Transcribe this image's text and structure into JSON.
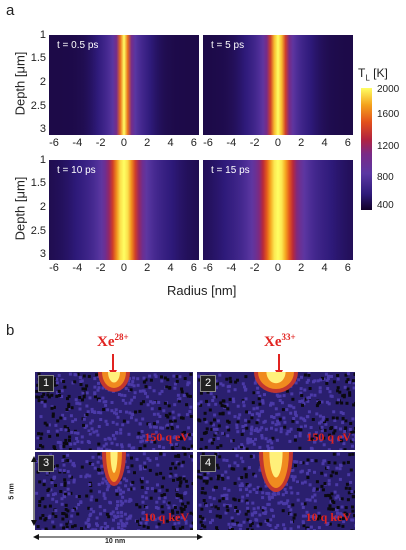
{
  "panel_a": {
    "letter": "a",
    "y_axis_label": "Depth [μm]",
    "x_axis_label": "Radius [nm]",
    "y_ticks": [
      "1",
      "1.5",
      "2",
      "2.5",
      "3"
    ],
    "x_ticks": [
      "-6",
      "-4",
      "-2",
      "0",
      "2",
      "4",
      "6"
    ],
    "colorbar": {
      "label": "T",
      "label_sub": "L",
      "label_unit": "[K]",
      "ticks": [
        "2000",
        "1600",
        "1200",
        "800",
        "400"
      ]
    },
    "subplots": [
      {
        "time_label": "t = 0.5 ps",
        "core_width_nm": 1.0,
        "halo_width_nm": 4.5
      },
      {
        "time_label": "t = 5 ps",
        "core_width_nm": 1.6,
        "halo_width_nm": 5.5
      },
      {
        "time_label": "t = 10 ps",
        "core_width_nm": 2.4,
        "halo_width_nm": 8.0
      },
      {
        "time_label": "t = 15 ps",
        "core_width_nm": 2.8,
        "halo_width_nm": 9.0
      }
    ]
  },
  "panel_b": {
    "letter": "b",
    "ions": [
      {
        "symbol": "Xe",
        "charge": "28+"
      },
      {
        "symbol": "Xe",
        "charge": "33+"
      }
    ],
    "tiles": [
      {
        "number": "1",
        "energy": "150 q eV"
      },
      {
        "number": "2",
        "energy": "150 q eV"
      },
      {
        "number": "3",
        "energy": "10 q keV"
      },
      {
        "number": "4",
        "energy": "10 q keV"
      }
    ],
    "scale_vertical": "5 nm",
    "scale_horizontal": "10 nm"
  }
}
